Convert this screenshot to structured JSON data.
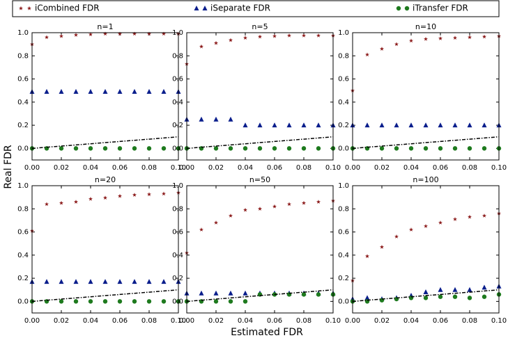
{
  "xlabel": "Estimated FDR",
  "ylabel": "Real FDR",
  "chart_data": [
    {
      "type": "scatter",
      "title": "n=1",
      "x": [
        0,
        0.01,
        0.02,
        0.03,
        0.04,
        0.05,
        0.06,
        0.07,
        0.08,
        0.09,
        0.1
      ],
      "xlim": [
        0,
        0.1
      ],
      "ylim": [
        -0.1,
        1.0
      ],
      "xticks": [
        {
          "value": 0,
          "label": "0.00"
        },
        {
          "value": 0.02,
          "label": "0.02"
        },
        {
          "value": 0.04,
          "label": "0.04"
        },
        {
          "value": 0.06,
          "label": "0.06"
        },
        {
          "value": 0.08,
          "label": "0.08"
        },
        {
          "value": 0.1,
          "label": "0.10"
        }
      ],
      "yticks": [
        {
          "value": 0,
          "label": "0.0"
        },
        {
          "value": 0.2,
          "label": "0.2"
        },
        {
          "value": 0.4,
          "label": "0.4"
        },
        {
          "value": 0.6,
          "label": "0.6"
        },
        {
          "value": 0.8,
          "label": "0.8"
        },
        {
          "value": 1.0,
          "label": "1.0"
        }
      ],
      "series": [
        {
          "name": "iCombined FDR",
          "color": "#8b1a1a",
          "marker": "star",
          "values": [
            0.9,
            0.96,
            0.97,
            0.98,
            0.985,
            0.99,
            0.99,
            0.99,
            0.99,
            0.99,
            0.99
          ]
        },
        {
          "name": "iSeparate FDR",
          "color": "#0a1e8c",
          "marker": "triangle",
          "values": [
            0.49,
            0.49,
            0.49,
            0.49,
            0.49,
            0.49,
            0.49,
            0.49,
            0.49,
            0.49,
            0.49
          ]
        },
        {
          "name": "iTransfer FDR",
          "color": "#1e7a1e",
          "marker": "circle",
          "values": [
            0,
            0,
            0,
            0,
            0,
            0,
            0,
            0,
            0,
            0,
            0
          ]
        },
        {
          "color": "#000000",
          "marker": "dashdot",
          "values": [
            0,
            0.01,
            0.02,
            0.03,
            0.04,
            0.05,
            0.06,
            0.07,
            0.08,
            0.09,
            0.1
          ]
        }
      ]
    },
    {
      "type": "scatter",
      "title": "n=5",
      "x": [
        0,
        0.01,
        0.02,
        0.03,
        0.04,
        0.05,
        0.06,
        0.07,
        0.08,
        0.09,
        0.1
      ],
      "xlim": [
        0,
        0.1
      ],
      "ylim": [
        -0.1,
        1.0
      ],
      "xticks": [
        {
          "value": 0,
          "label": "0.00"
        },
        {
          "value": 0.02,
          "label": "0.02"
        },
        {
          "value": 0.04,
          "label": "0.04"
        },
        {
          "value": 0.06,
          "label": "0.06"
        },
        {
          "value": 0.08,
          "label": "0.08"
        },
        {
          "value": 0.1,
          "label": "0.10"
        }
      ],
      "yticks": [
        {
          "value": 0,
          "label": "0.0"
        },
        {
          "value": 0.2,
          "label": "0.2"
        },
        {
          "value": 0.4,
          "label": "0.4"
        },
        {
          "value": 0.6,
          "label": "0.6"
        },
        {
          "value": 0.8,
          "label": "0.8"
        },
        {
          "value": 1.0,
          "label": "1.0"
        }
      ],
      "series": [
        {
          "name": "iCombined FDR",
          "color": "#8b1a1a",
          "marker": "star",
          "values": [
            0.73,
            0.88,
            0.91,
            0.935,
            0.955,
            0.965,
            0.97,
            0.975,
            0.975,
            0.975,
            0.975
          ]
        },
        {
          "name": "iSeparate FDR",
          "color": "#0a1e8c",
          "marker": "triangle",
          "values": [
            0.25,
            0.25,
            0.25,
            0.25,
            0.2,
            0.2,
            0.2,
            0.2,
            0.2,
            0.2,
            0.2
          ]
        },
        {
          "name": "iTransfer FDR",
          "color": "#1e7a1e",
          "marker": "circle",
          "values": [
            0,
            0,
            0,
            0,
            0,
            0,
            0,
            0,
            0,
            0,
            0
          ]
        },
        {
          "color": "#000000",
          "marker": "dashdot",
          "values": [
            0,
            0.01,
            0.02,
            0.03,
            0.04,
            0.05,
            0.06,
            0.07,
            0.08,
            0.09,
            0.1
          ]
        }
      ]
    },
    {
      "type": "scatter",
      "title": "n=10",
      "x": [
        0,
        0.01,
        0.02,
        0.03,
        0.04,
        0.05,
        0.06,
        0.07,
        0.08,
        0.09,
        0.1
      ],
      "xlim": [
        0,
        0.1
      ],
      "ylim": [
        -0.1,
        1.0
      ],
      "xticks": [
        {
          "value": 0,
          "label": "0.00"
        },
        {
          "value": 0.02,
          "label": "0.02"
        },
        {
          "value": 0.04,
          "label": "0.04"
        },
        {
          "value": 0.06,
          "label": "0.06"
        },
        {
          "value": 0.08,
          "label": "0.08"
        },
        {
          "value": 0.1,
          "label": "0.10"
        }
      ],
      "yticks": [
        {
          "value": 0,
          "label": "0.0"
        },
        {
          "value": 0.2,
          "label": "0.2"
        },
        {
          "value": 0.4,
          "label": "0.4"
        },
        {
          "value": 0.6,
          "label": "0.6"
        },
        {
          "value": 0.8,
          "label": "0.8"
        },
        {
          "value": 1.0,
          "label": "1.0"
        }
      ],
      "series": [
        {
          "name": "iCombined FDR",
          "color": "#8b1a1a",
          "marker": "star",
          "values": [
            0.5,
            0.81,
            0.86,
            0.9,
            0.93,
            0.945,
            0.95,
            0.955,
            0.96,
            0.965,
            0.97
          ]
        },
        {
          "name": "iSeparate FDR",
          "color": "#0a1e8c",
          "marker": "triangle",
          "values": [
            0.2,
            0.2,
            0.2,
            0.2,
            0.2,
            0.2,
            0.2,
            0.2,
            0.2,
            0.2,
            0.2
          ]
        },
        {
          "name": "iTransfer FDR",
          "color": "#1e7a1e",
          "marker": "circle",
          "values": [
            0,
            0,
            0,
            0,
            0,
            0,
            0,
            0,
            0,
            0,
            0
          ]
        },
        {
          "color": "#000000",
          "marker": "dashdot",
          "values": [
            0,
            0.01,
            0.02,
            0.03,
            0.04,
            0.05,
            0.06,
            0.07,
            0.08,
            0.09,
            0.1
          ]
        }
      ]
    },
    {
      "type": "scatter",
      "title": "n=20",
      "x": [
        0,
        0.01,
        0.02,
        0.03,
        0.04,
        0.05,
        0.06,
        0.07,
        0.08,
        0.09,
        0.1
      ],
      "xlim": [
        0,
        0.1
      ],
      "ylim": [
        -0.1,
        1.0
      ],
      "xticks": [
        {
          "value": 0,
          "label": "0.00"
        },
        {
          "value": 0.02,
          "label": "0.02"
        },
        {
          "value": 0.04,
          "label": "0.04"
        },
        {
          "value": 0.06,
          "label": "0.06"
        },
        {
          "value": 0.08,
          "label": "0.08"
        },
        {
          "value": 0.1,
          "label": "0.10"
        }
      ],
      "yticks": [
        {
          "value": 0,
          "label": "0.0"
        },
        {
          "value": 0.2,
          "label": "0.2"
        },
        {
          "value": 0.4,
          "label": "0.4"
        },
        {
          "value": 0.6,
          "label": "0.6"
        },
        {
          "value": 0.8,
          "label": "0.8"
        },
        {
          "value": 1.0,
          "label": "1.0"
        }
      ],
      "series": [
        {
          "name": "iCombined FDR",
          "color": "#8b1a1a",
          "marker": "star",
          "values": [
            0.61,
            0.84,
            0.85,
            0.86,
            0.885,
            0.895,
            0.91,
            0.92,
            0.925,
            0.93,
            0.94
          ]
        },
        {
          "name": "iSeparate FDR",
          "color": "#0a1e8c",
          "marker": "triangle",
          "values": [
            0.17,
            0.17,
            0.17,
            0.17,
            0.17,
            0.17,
            0.17,
            0.17,
            0.17,
            0.17,
            0.17
          ]
        },
        {
          "name": "iTransfer FDR",
          "color": "#1e7a1e",
          "marker": "circle",
          "values": [
            0,
            0,
            0,
            0,
            0,
            0,
            0,
            0,
            0,
            0,
            0
          ]
        },
        {
          "color": "#000000",
          "marker": "dashdot",
          "values": [
            0,
            0.01,
            0.02,
            0.03,
            0.04,
            0.05,
            0.06,
            0.07,
            0.08,
            0.09,
            0.1
          ]
        }
      ]
    },
    {
      "type": "scatter",
      "title": "n=50",
      "x": [
        0,
        0.01,
        0.02,
        0.03,
        0.04,
        0.05,
        0.06,
        0.07,
        0.08,
        0.09,
        0.1
      ],
      "xlim": [
        0,
        0.1
      ],
      "ylim": [
        -0.1,
        1.0
      ],
      "xticks": [
        {
          "value": 0,
          "label": "0.00"
        },
        {
          "value": 0.02,
          "label": "0.02"
        },
        {
          "value": 0.04,
          "label": "0.04"
        },
        {
          "value": 0.06,
          "label": "0.06"
        },
        {
          "value": 0.08,
          "label": "0.08"
        },
        {
          "value": 0.1,
          "label": "0.10"
        }
      ],
      "yticks": [
        {
          "value": 0,
          "label": "0.0"
        },
        {
          "value": 0.2,
          "label": "0.2"
        },
        {
          "value": 0.4,
          "label": "0.4"
        },
        {
          "value": 0.6,
          "label": "0.6"
        },
        {
          "value": 0.8,
          "label": "0.8"
        },
        {
          "value": 1.0,
          "label": "1.0"
        }
      ],
      "series": [
        {
          "name": "iCombined FDR",
          "color": "#8b1a1a",
          "marker": "star",
          "values": [
            0.42,
            0.62,
            0.68,
            0.74,
            0.79,
            0.8,
            0.82,
            0.84,
            0.85,
            0.86,
            0.87
          ]
        },
        {
          "name": "iSeparate FDR",
          "color": "#0a1e8c",
          "marker": "triangle",
          "values": [
            0.07,
            0.07,
            0.07,
            0.07,
            0.07,
            0.07,
            0.07,
            0.07,
            0.07,
            0.07,
            0.07
          ]
        },
        {
          "name": "iTransfer FDR",
          "color": "#1e7a1e",
          "marker": "circle",
          "values": [
            0,
            0,
            0,
            0,
            0,
            0.06,
            0.06,
            0.06,
            0.06,
            0.06,
            0.06
          ]
        },
        {
          "color": "#000000",
          "marker": "dashdot",
          "values": [
            0,
            0.01,
            0.02,
            0.03,
            0.04,
            0.05,
            0.06,
            0.07,
            0.08,
            0.09,
            0.1
          ]
        }
      ]
    },
    {
      "type": "scatter",
      "title": "n=100",
      "x": [
        0,
        0.01,
        0.02,
        0.03,
        0.04,
        0.05,
        0.06,
        0.07,
        0.08,
        0.09,
        0.1
      ],
      "xlim": [
        0,
        0.1
      ],
      "ylim": [
        -0.1,
        1.0
      ],
      "xticks": [
        {
          "value": 0,
          "label": "0.00"
        },
        {
          "value": 0.02,
          "label": "0.02"
        },
        {
          "value": 0.04,
          "label": "0.04"
        },
        {
          "value": 0.06,
          "label": "0.06"
        },
        {
          "value": 0.08,
          "label": "0.08"
        },
        {
          "value": 0.1,
          "label": "0.10"
        }
      ],
      "yticks": [
        {
          "value": 0,
          "label": "0.0"
        },
        {
          "value": 0.2,
          "label": "0.2"
        },
        {
          "value": 0.4,
          "label": "0.4"
        },
        {
          "value": 0.6,
          "label": "0.6"
        },
        {
          "value": 0.8,
          "label": "0.8"
        },
        {
          "value": 1.0,
          "label": "1.0"
        }
      ],
      "series": [
        {
          "name": "iCombined FDR",
          "color": "#8b1a1a",
          "marker": "star",
          "values": [
            0.18,
            0.39,
            0.47,
            0.56,
            0.62,
            0.65,
            0.68,
            0.71,
            0.73,
            0.74,
            0.76
          ]
        },
        {
          "name": "iSeparate FDR",
          "color": "#0a1e8c",
          "marker": "triangle",
          "values": [
            0.02,
            0.03,
            0.02,
            0.03,
            0.05,
            0.08,
            0.1,
            0.1,
            0.1,
            0.12,
            0.13
          ]
        },
        {
          "name": "iTransfer FDR",
          "color": "#1e7a1e",
          "marker": "circle",
          "values": [
            0,
            0,
            0.01,
            0.02,
            0.03,
            0.03,
            0.04,
            0.04,
            0.03,
            0.04,
            0.06
          ]
        },
        {
          "color": "#000000",
          "marker": "dashdot",
          "values": [
            0,
            0.01,
            0.02,
            0.03,
            0.04,
            0.05,
            0.06,
            0.07,
            0.08,
            0.09,
            0.1
          ]
        }
      ]
    }
  ]
}
